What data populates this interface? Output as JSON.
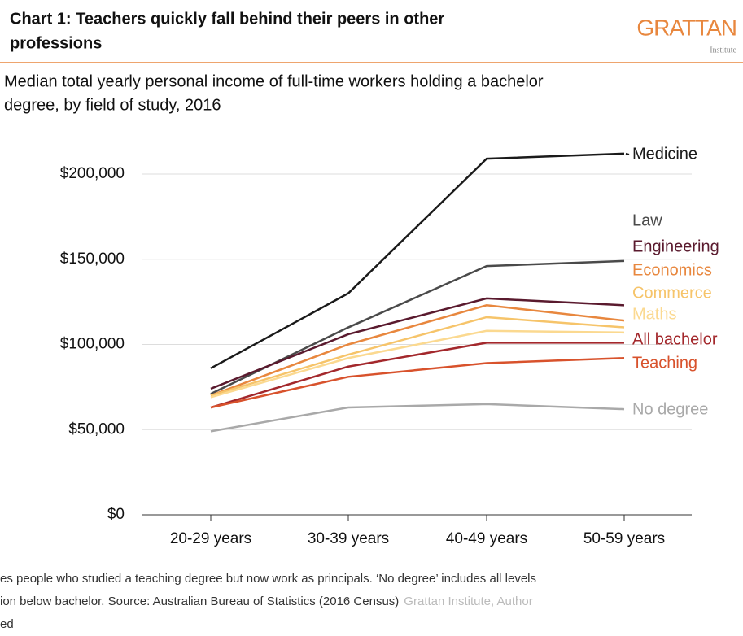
{
  "header": {
    "title_lines": [
      "Chart 1: Teachers quickly fall behind their peers in other",
      "professions"
    ],
    "logo": "GRATTAN",
    "logo_sub": "Institute"
  },
  "chart_data": {
    "type": "line",
    "subtitle_lines": [
      "Median total yearly personal income of full-time workers holding a bachelor",
      "degree, by field of study, 2016"
    ],
    "categories": [
      "20-29 years",
      "30-39 years",
      "40-49 years",
      "50-59 years"
    ],
    "series": [
      {
        "name": "Medicine",
        "color": "#1a1a1a",
        "values": [
          86000,
          130000,
          209000,
          212000
        ]
      },
      {
        "name": "Law",
        "color": "#4a4a4a",
        "values": [
          71000,
          110000,
          146000,
          149000
        ]
      },
      {
        "name": "Engineering",
        "color": "#5a1a2e",
        "values": [
          74000,
          106000,
          127000,
          123000
        ]
      },
      {
        "name": "Economics",
        "color": "#e8873e",
        "values": [
          70000,
          100000,
          123000,
          114000
        ]
      },
      {
        "name": "Commerce",
        "color": "#f6c46a",
        "values": [
          70000,
          94000,
          116000,
          110000
        ]
      },
      {
        "name": "Maths",
        "color": "#fbd990",
        "values": [
          69000,
          92000,
          108000,
          107000
        ]
      },
      {
        "name": "All bachelor",
        "color": "#a3282c",
        "values": [
          63000,
          87000,
          101000,
          101000
        ]
      },
      {
        "name": "Teaching",
        "color": "#d8522c",
        "values": [
          63000,
          81000,
          89000,
          92000
        ]
      },
      {
        "name": "No degree",
        "color": "#a9a9a9",
        "values": [
          49000,
          63000,
          65000,
          62000
        ]
      }
    ],
    "ylim": [
      0,
      200000
    ],
    "yticks": [
      {
        "value": 0,
        "label": "$0"
      },
      {
        "value": 50000,
        "label": "$50,000"
      },
      {
        "value": 100000,
        "label": "$100,000"
      },
      {
        "value": 150000,
        "label": "$150,000"
      },
      {
        "value": 200000,
        "label": "$200,000"
      }
    ],
    "grid": true
  },
  "footer": {
    "lines": [
      "es people who studied a teaching degree but now work as principals. ‘No degree’ includes all levels",
      "ion below bachelor. Source: Australian Bureau of Statistics (2016 Census)",
      "ed"
    ],
    "source_grey": "Grattan Institute, Author"
  }
}
